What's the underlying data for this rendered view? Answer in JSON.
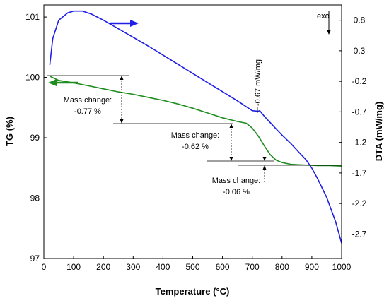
{
  "chart_data": {
    "type": "line",
    "xlabel": "Temperature (°C)",
    "ylabel_left": "TG (%)",
    "ylabel_right": "DTA (mW/mg)",
    "xlim": [
      0,
      1000
    ],
    "ylim_left": [
      97,
      101.2
    ],
    "ylim_right": [
      -3.1,
      1.05
    ],
    "x_ticks": [
      0,
      100,
      200,
      300,
      400,
      500,
      600,
      700,
      800,
      900,
      1000
    ],
    "y_left_ticks": [
      97,
      98,
      99,
      100,
      101
    ],
    "y_right_ticks": [
      0.8,
      0.3,
      -0.2,
      -0.7,
      -1.2,
      -1.7,
      -2.2,
      -2.7
    ],
    "grid": false,
    "exo_label": "exo",
    "series": [
      {
        "color": "#1f1fe6",
        "axis": "right",
        "points": [
          [
            20,
            0.07
          ],
          [
            30,
            0.5
          ],
          [
            50,
            0.8
          ],
          [
            80,
            0.92
          ],
          [
            100,
            0.95
          ],
          [
            130,
            0.95
          ],
          [
            160,
            0.9
          ],
          [
            200,
            0.8
          ],
          [
            250,
            0.66
          ],
          [
            300,
            0.52
          ],
          [
            350,
            0.38
          ],
          [
            400,
            0.23
          ],
          [
            450,
            0.08
          ],
          [
            500,
            -0.07
          ],
          [
            550,
            -0.22
          ],
          [
            600,
            -0.37
          ],
          [
            650,
            -0.52
          ],
          [
            700,
            -0.68
          ],
          [
            720,
            -0.69
          ],
          [
            725,
            -0.68
          ],
          [
            740,
            -0.77
          ],
          [
            780,
            -0.98
          ],
          [
            800,
            -1.08
          ],
          [
            830,
            -1.22
          ],
          [
            860,
            -1.38
          ],
          [
            880,
            -1.48
          ],
          [
            900,
            -1.62
          ],
          [
            920,
            -1.8
          ],
          [
            950,
            -2.1
          ],
          [
            980,
            -2.5
          ],
          [
            1000,
            -2.85
          ]
        ]
      },
      {
        "color": "#1e8c1e",
        "axis": "left",
        "points": [
          [
            20,
            100.02
          ],
          [
            50,
            99.95
          ],
          [
            100,
            99.91
          ],
          [
            150,
            99.86
          ],
          [
            200,
            99.81
          ],
          [
            250,
            99.76
          ],
          [
            300,
            99.72
          ],
          [
            350,
            99.67
          ],
          [
            400,
            99.62
          ],
          [
            450,
            99.56
          ],
          [
            500,
            99.49
          ],
          [
            550,
            99.41
          ],
          [
            600,
            99.33
          ],
          [
            650,
            99.27
          ],
          [
            680,
            99.24
          ],
          [
            700,
            99.16
          ],
          [
            720,
            99.03
          ],
          [
            740,
            98.87
          ],
          [
            760,
            98.72
          ],
          [
            780,
            98.63
          ],
          [
            800,
            98.59
          ],
          [
            830,
            98.56
          ],
          [
            870,
            98.55
          ],
          [
            920,
            98.54
          ],
          [
            960,
            98.54
          ],
          [
            1000,
            98.53
          ]
        ]
      }
    ],
    "annotations": [
      {
        "line1": "Mass change:",
        "line2": "-0.77 %"
      },
      {
        "line1": "Mass change:",
        "line2": "-0.62 %"
      },
      {
        "line1": "Mass change:",
        "line2": "-0.06 %"
      },
      {
        "text": "-0.67 mW/mg"
      }
    ]
  }
}
